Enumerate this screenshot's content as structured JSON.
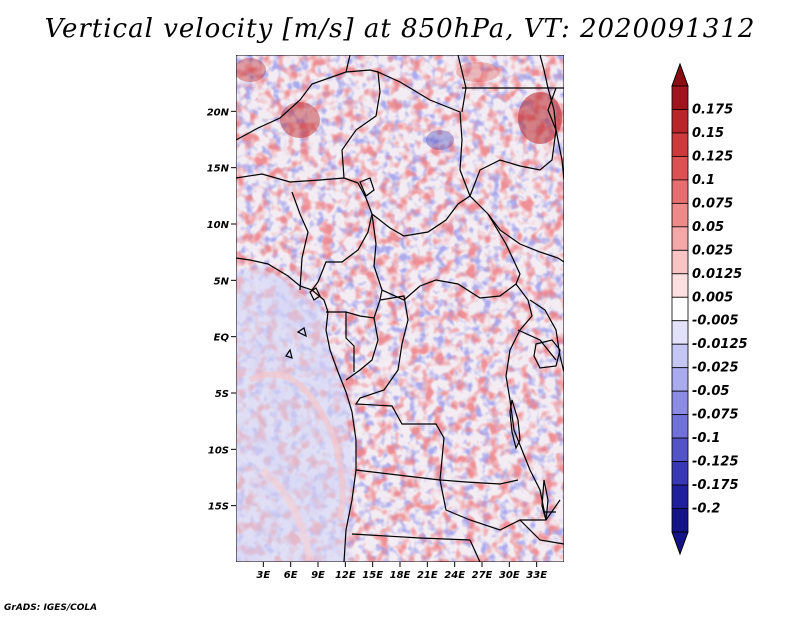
{
  "title": "Vertical velocity [m/s] at 850hPa, VT: 2020091312",
  "credit": "GrADS: IGES/COLA",
  "map": {
    "field": "vertical velocity",
    "level": "850hPa",
    "valid_time": "2020091312",
    "units": "m/s",
    "lat_range": [
      -20,
      25
    ],
    "lon_range": [
      0,
      36
    ],
    "lat_ticks": [
      {
        "value": 20,
        "label": "20N"
      },
      {
        "value": 15,
        "label": "15N"
      },
      {
        "value": 10,
        "label": "10N"
      },
      {
        "value": 5,
        "label": "5N"
      },
      {
        "value": 0,
        "label": "EQ"
      },
      {
        "value": -5,
        "label": "5S"
      },
      {
        "value": -10,
        "label": "10S"
      },
      {
        "value": -15,
        "label": "15S"
      }
    ],
    "lon_ticks": [
      {
        "value": 3,
        "label": "3E"
      },
      {
        "value": 6,
        "label": "6E"
      },
      {
        "value": 9,
        "label": "9E"
      },
      {
        "value": 12,
        "label": "12E"
      },
      {
        "value": 15,
        "label": "15E"
      },
      {
        "value": 18,
        "label": "18E"
      },
      {
        "value": 21,
        "label": "21E"
      },
      {
        "value": 24,
        "label": "24E"
      },
      {
        "value": 27,
        "label": "27E"
      },
      {
        "value": 30,
        "label": "30E"
      },
      {
        "value": 33,
        "label": "33E"
      }
    ]
  },
  "colorbar": {
    "levels": [
      {
        "label": "0.175",
        "color": "#a0141e"
      },
      {
        "label": "0.15",
        "color": "#b8262a"
      },
      {
        "label": "0.125",
        "color": "#cc3a3c"
      },
      {
        "label": "0.1",
        "color": "#dc5252"
      },
      {
        "label": "0.075",
        "color": "#e66e6e"
      },
      {
        "label": "0.05",
        "color": "#ee8a8a"
      },
      {
        "label": "0.025",
        "color": "#f4a8a8"
      },
      {
        "label": "0.0125",
        "color": "#f8c4c4"
      },
      {
        "label": "0.005",
        "color": "#fce0e0"
      },
      {
        "label": "-0.005",
        "color": "#ffffff"
      },
      {
        "label": "-0.0125",
        "color": "#e2e2fa"
      },
      {
        "label": "-0.025",
        "color": "#c6c6f4"
      },
      {
        "label": "-0.05",
        "color": "#aaaaee"
      },
      {
        "label": "-0.075",
        "color": "#8c8ce4"
      },
      {
        "label": "-0.1",
        "color": "#7070d8"
      },
      {
        "label": "-0.125",
        "color": "#5454c8"
      },
      {
        "label": "-0.175",
        "color": "#3838b4"
      },
      {
        "label": "-0.2",
        "color": "#20209c"
      }
    ],
    "top_color": "#8c0c14",
    "bottom_color": "#141488"
  }
}
